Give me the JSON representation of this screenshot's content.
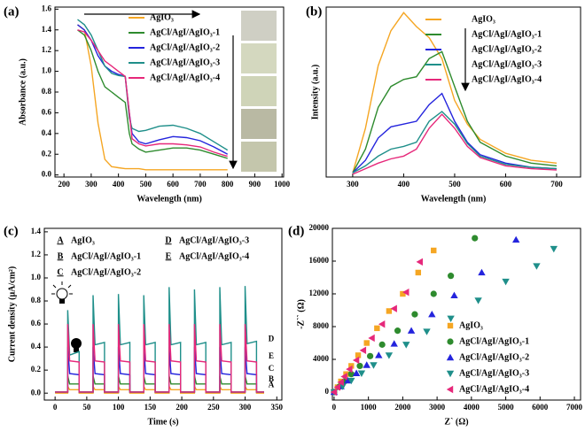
{
  "chart_data": [
    {
      "type": "line",
      "panel_label": "(a)",
      "x_label": "Wavelength (nm)",
      "y_label": "Absorbance (a.u.)",
      "x": [
        250,
        275,
        300,
        325,
        350,
        375,
        400,
        425,
        440,
        450,
        475,
        500,
        550,
        600,
        650,
        700,
        750,
        800
      ],
      "xlim": [
        167,
        1006
      ],
      "ylim": [
        -0.02,
        1.62
      ],
      "xticks": [
        200,
        300,
        400,
        500,
        600,
        700,
        800,
        900,
        1000
      ],
      "yticks": [
        {
          "value": 0,
          "label": "0.0"
        },
        0.2,
        0.4,
        0.6,
        0.8,
        {
          "value": 1,
          "label": "1.0"
        },
        1.2,
        1.4,
        1.6
      ],
      "series": [
        {
          "name": "AgIO₃",
          "color": "#f5a623",
          "values": [
            1.45,
            1.4,
            1.05,
            0.5,
            0.15,
            0.08,
            0.07,
            0.06,
            0.06,
            0.06,
            0.06,
            0.05,
            0.05,
            0.05,
            0.05,
            0.05,
            0.05,
            0.05
          ]
        },
        {
          "name": "AgCl/AgI/AgIO₃-1",
          "color": "#2e8b2e",
          "values": [
            1.4,
            1.35,
            1.2,
            1.0,
            0.85,
            0.8,
            0.75,
            0.7,
            0.4,
            0.3,
            0.25,
            0.22,
            0.24,
            0.26,
            0.26,
            0.24,
            0.2,
            0.16
          ]
        },
        {
          "name": "AgCl/AgI/AgIO₃-2",
          "color": "#2424dd",
          "values": [
            1.45,
            1.4,
            1.3,
            1.15,
            1.05,
            1.0,
            0.97,
            0.95,
            0.6,
            0.4,
            0.32,
            0.3,
            0.34,
            0.37,
            0.36,
            0.33,
            0.27,
            0.2
          ]
        },
        {
          "name": "AgCl/AgI/AgIO₃-3",
          "color": "#1f8f8a",
          "values": [
            1.5,
            1.45,
            1.35,
            1.2,
            1.05,
            0.98,
            0.96,
            0.95,
            0.55,
            0.45,
            0.42,
            0.43,
            0.47,
            0.48,
            0.45,
            0.4,
            0.32,
            0.24
          ]
        },
        {
          "name": "AgCl/AgI/AgIO₃-4",
          "color": "#e6287a",
          "values": [
            1.4,
            1.38,
            1.3,
            1.2,
            1.1,
            1.05,
            1.0,
            0.95,
            0.6,
            0.35,
            0.3,
            0.28,
            0.3,
            0.3,
            0.29,
            0.27,
            0.22,
            0.18
          ]
        }
      ]
    },
    {
      "type": "line",
      "panel_label": "(b)",
      "x_label": "Wavelength (nm)",
      "y_label": "Intensity (a.u.)",
      "x": [
        300,
        325,
        350,
        375,
        400,
        425,
        450,
        475,
        500,
        525,
        550,
        600,
        650,
        700
      ],
      "xlim": [
        248,
        747
      ],
      "ylim": [
        0,
        1.22
      ],
      "xticks": [
        300,
        400,
        500,
        600,
        700
      ],
      "series": [
        {
          "name": "AgIO₃",
          "color": "#f5a623",
          "values": [
            0.03,
            0.35,
            0.8,
            1.05,
            1.18,
            1.08,
            1.0,
            0.85,
            0.55,
            0.38,
            0.27,
            0.17,
            0.12,
            0.1
          ]
        },
        {
          "name": "AgCl/AgI/AgIO₃-1",
          "color": "#2e8b2e",
          "values": [
            0.03,
            0.2,
            0.5,
            0.65,
            0.7,
            0.72,
            0.85,
            0.9,
            0.65,
            0.4,
            0.25,
            0.15,
            0.1,
            0.08
          ]
        },
        {
          "name": "AgCl/AgI/AgIO₃-2",
          "color": "#2424dd",
          "values": [
            0.03,
            0.12,
            0.28,
            0.36,
            0.38,
            0.4,
            0.52,
            0.6,
            0.4,
            0.25,
            0.16,
            0.1,
            0.07,
            0.06
          ]
        },
        {
          "name": "AgCl/AgI/AgIO₃-3",
          "color": "#1f8f8a",
          "values": [
            0.03,
            0.08,
            0.15,
            0.2,
            0.22,
            0.25,
            0.4,
            0.47,
            0.38,
            0.24,
            0.15,
            0.09,
            0.07,
            0.06
          ]
        },
        {
          "name": "AgCl/AgI/AgIO₃-4",
          "color": "#e6287a",
          "values": [
            0.02,
            0.06,
            0.1,
            0.13,
            0.15,
            0.2,
            0.35,
            0.45,
            0.35,
            0.22,
            0.14,
            0.08,
            0.06,
            0.05
          ]
        }
      ]
    },
    {
      "type": "line",
      "panel_label": "(c)",
      "x_label": "Time (s)",
      "y_label": "Current density (μA/cm²)",
      "x": [
        0,
        20,
        20,
        23,
        38,
        38,
        60,
        60,
        63,
        78,
        78,
        100,
        100,
        103,
        118,
        118,
        140,
        140,
        143,
        158,
        158,
        180,
        180,
        183,
        198,
        198,
        220,
        220,
        223,
        238,
        238,
        260,
        260,
        263,
        278,
        278,
        300,
        300,
        303,
        318,
        318,
        330
      ],
      "xlim": [
        -17,
        358
      ],
      "ylim": [
        -0.06,
        1.43
      ],
      "xticks": [
        0,
        50,
        100,
        150,
        200,
        250,
        300,
        350
      ],
      "yticks": [
        {
          "value": 0,
          "label": "0.0"
        },
        0.2,
        0.4,
        0.6,
        0.8,
        {
          "value": 1,
          "label": "1.0"
        },
        1.2,
        1.4
      ],
      "series": [
        {
          "letter": "A",
          "name": "AgIO₃",
          "color": "#f5a623",
          "values": [
            0,
            0,
            0.06,
            0.03,
            0.03,
            0,
            0,
            0.06,
            0.03,
            0.03,
            0,
            0,
            0.06,
            0.03,
            0.03,
            0,
            0,
            0.06,
            0.03,
            0.03,
            0,
            0,
            0.06,
            0.03,
            0.03,
            0,
            0,
            0.06,
            0.03,
            0.03,
            0,
            0,
            0.06,
            0.03,
            0.03,
            0,
            0,
            0.06,
            0.03,
            0.03,
            0,
            0
          ]
        },
        {
          "letter": "B",
          "name": "AgCl/AgI/AgIO₃-1",
          "color": "#2e8b2e",
          "values": [
            0.01,
            0.01,
            0.15,
            0.08,
            0.08,
            0.01,
            0.01,
            0.15,
            0.08,
            0.08,
            0.01,
            0.01,
            0.15,
            0.08,
            0.08,
            0.01,
            0.01,
            0.15,
            0.08,
            0.08,
            0.01,
            0.01,
            0.15,
            0.08,
            0.08,
            0.01,
            0.01,
            0.15,
            0.08,
            0.08,
            0.01,
            0.01,
            0.15,
            0.08,
            0.08,
            0.01,
            0.01,
            0.15,
            0.08,
            0.08,
            0.01,
            0.01
          ]
        },
        {
          "letter": "C",
          "name": "AgCl/AgI/AgIO₃-2",
          "color": "#2424dd",
          "values": [
            0.01,
            0.01,
            0.4,
            0.17,
            0.16,
            0.01,
            0.01,
            0.4,
            0.17,
            0.16,
            0.01,
            0.01,
            0.4,
            0.17,
            0.16,
            0.01,
            0.01,
            0.4,
            0.17,
            0.16,
            0.01,
            0.01,
            0.4,
            0.17,
            0.16,
            0.01,
            0.01,
            0.4,
            0.17,
            0.16,
            0.01,
            0.01,
            0.4,
            0.17,
            0.16,
            0.01,
            0.01,
            0.4,
            0.17,
            0.16,
            0.01,
            0.01
          ]
        },
        {
          "letter": "D",
          "name": "AgCl/AgI/AgIO₃-3",
          "color": "#1f8f8a",
          "values": [
            0.01,
            0.01,
            0.72,
            0.33,
            0.36,
            0.01,
            0.01,
            0.85,
            0.42,
            0.44,
            0.01,
            0.01,
            0.86,
            0.42,
            0.44,
            0.01,
            0.01,
            0.85,
            0.42,
            0.44,
            0.01,
            0.01,
            0.92,
            0.42,
            0.44,
            0.01,
            0.01,
            0.9,
            0.42,
            0.44,
            0.01,
            0.01,
            0.92,
            0.42,
            0.44,
            0.01,
            0.01,
            0.93,
            0.43,
            0.45,
            0.01,
            0.01
          ]
        },
        {
          "letter": "E",
          "name": "AgCl/AgI/AgIO₃-4",
          "color": "#e6287a",
          "values": [
            0.01,
            0.01,
            0.6,
            0.28,
            0.27,
            0.01,
            0.01,
            0.6,
            0.28,
            0.27,
            0.01,
            0.01,
            0.6,
            0.28,
            0.27,
            0.01,
            0.01,
            0.6,
            0.28,
            0.27,
            0.01,
            0.01,
            0.6,
            0.28,
            0.27,
            0.01,
            0.01,
            0.6,
            0.28,
            0.27,
            0.01,
            0.01,
            0.6,
            0.28,
            0.27,
            0.01,
            0.01,
            0.6,
            0.28,
            0.27,
            0.01,
            0.01
          ]
        }
      ]
    },
    {
      "type": "scatter",
      "panel_label": "(d)",
      "x_label": "Z` (Ω)",
      "y_label": "-Z`` (Ω)",
      "xlim": [
        -50,
        7180
      ],
      "ylim": [
        -970,
        20000
      ],
      "xticks": [
        0,
        1000,
        2000,
        3000,
        4000,
        5000,
        6000,
        7000
      ],
      "yticks": [
        0,
        4000,
        8000,
        12000,
        16000,
        20000
      ],
      "series": [
        {
          "name": "AgIO₃",
          "color": "#f5a623",
          "marker": "square",
          "x": [
            0,
            100,
            200,
            350,
            500,
            700,
            950,
            1250,
            1600,
            2000,
            2450,
            2900
          ],
          "values": [
            0,
            600,
            1300,
            2200,
            3200,
            4500,
            6000,
            7800,
            9900,
            12000,
            14600,
            17300
          ]
        },
        {
          "name": "AgCl/AgI/AgIO₃-1",
          "color": "#2e8b2e",
          "marker": "circle",
          "x": [
            0,
            150,
            300,
            500,
            750,
            1050,
            1400,
            1850,
            2350,
            2900,
            3400,
            4100
          ],
          "values": [
            0,
            650,
            1300,
            2200,
            3200,
            4400,
            5800,
            7500,
            9500,
            12000,
            14200,
            18800
          ]
        },
        {
          "name": "AgCl/AgI/AgIO₃-2",
          "color": "#2424dd",
          "marker": "triangle-up",
          "x": [
            0,
            200,
            400,
            650,
            950,
            1300,
            1750,
            2250,
            2850,
            3500,
            4300,
            5300
          ],
          "values": [
            0,
            700,
            1400,
            2300,
            3300,
            4500,
            5900,
            7500,
            9500,
            11800,
            14600,
            18600
          ]
        },
        {
          "name": "AgCl/AgI/AgIO₃-3",
          "color": "#1f8f8a",
          "marker": "triangle-down",
          "x": [
            0,
            250,
            500,
            800,
            1150,
            1600,
            2100,
            2700,
            3400,
            4200,
            5000,
            5900,
            6400
          ],
          "values": [
            0,
            700,
            1400,
            2300,
            3300,
            4500,
            5800,
            7400,
            9000,
            11200,
            13500,
            15400,
            17500
          ]
        },
        {
          "name": "AgCl/AgI/AgIO₃-4",
          "color": "#e6287a",
          "marker": "triangle-left",
          "x": [
            0,
            100,
            200,
            300,
            450,
            650,
            850,
            1100,
            1400,
            1750,
            2100,
            2500
          ],
          "values": [
            0,
            600,
            1200,
            1900,
            2800,
            3900,
            5100,
            6600,
            8300,
            10200,
            12200,
            15900
          ]
        }
      ]
    }
  ]
}
